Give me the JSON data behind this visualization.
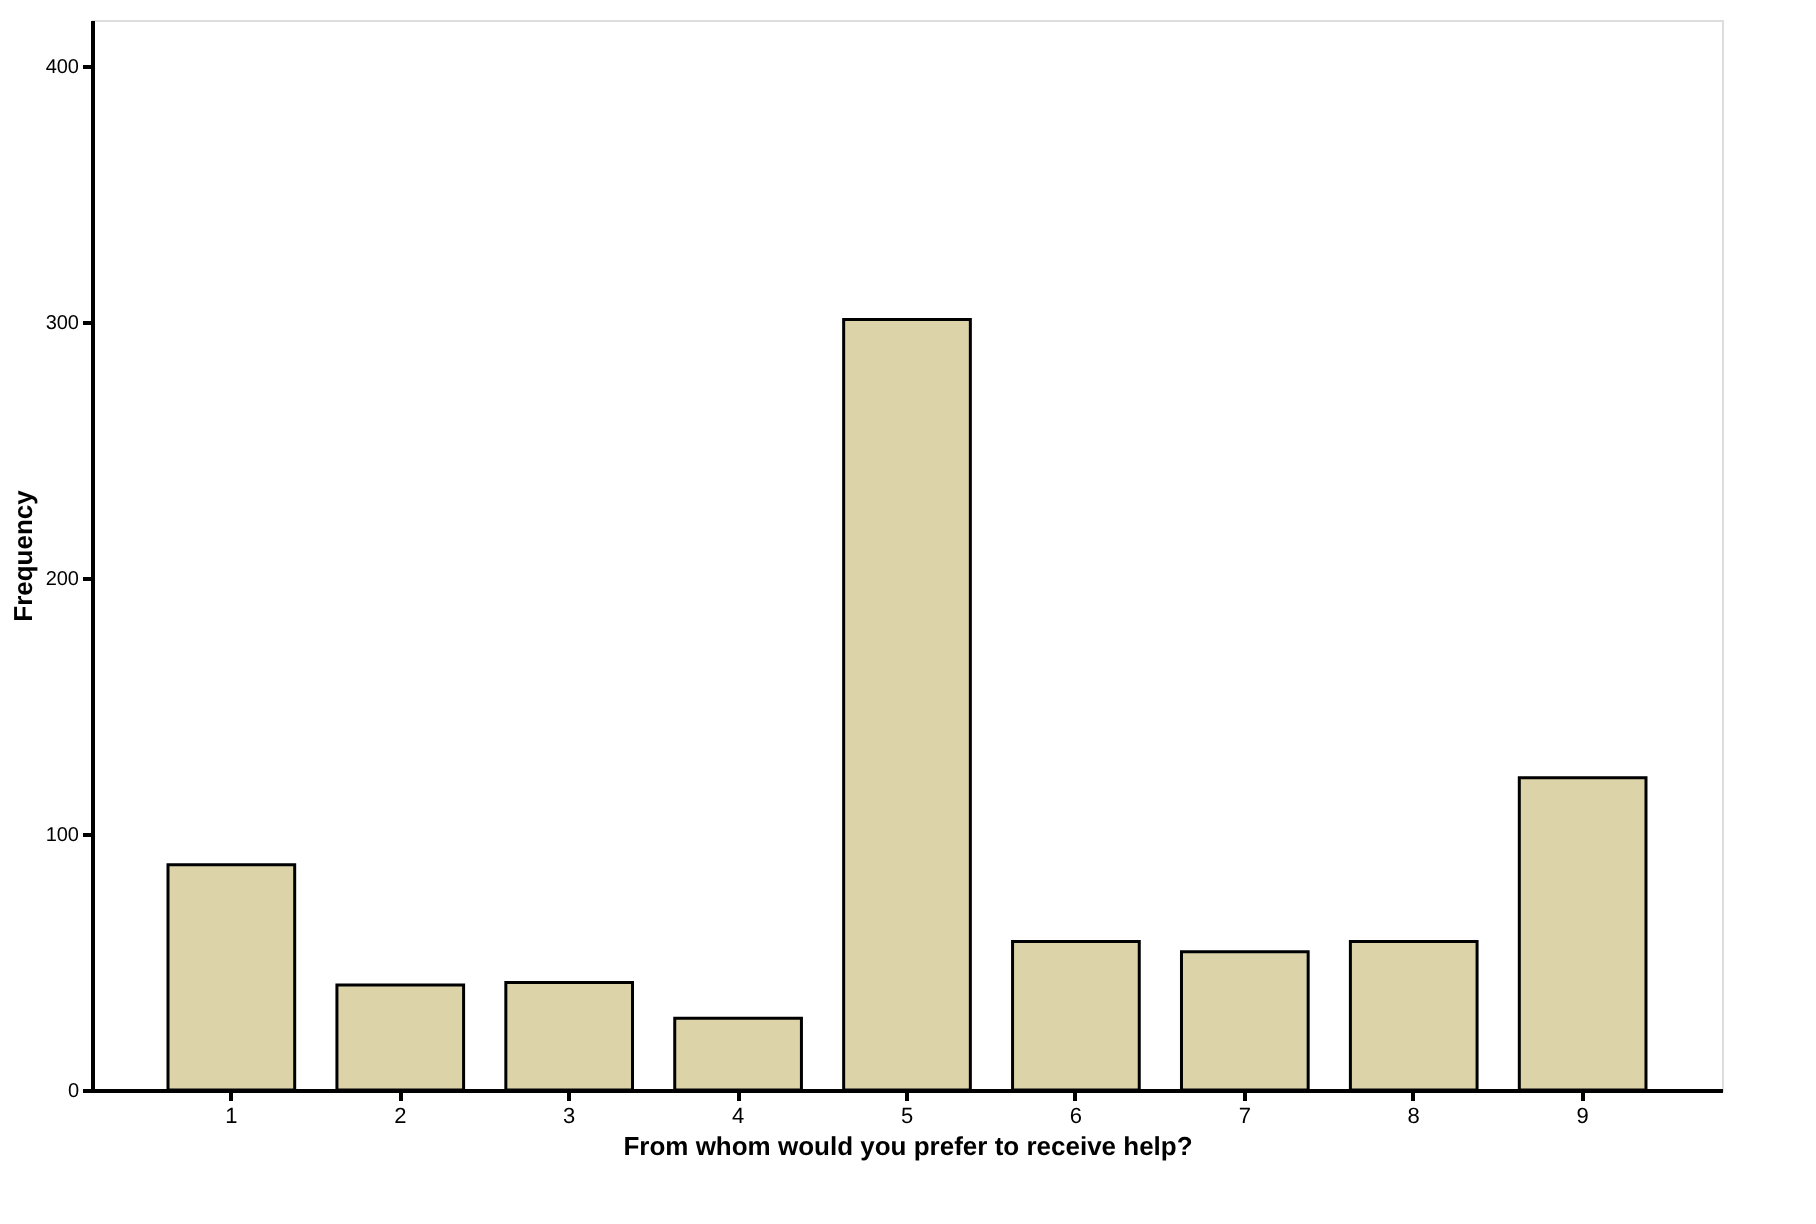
{
  "chart_data": {
    "type": "bar",
    "xlabel": "From whom would you prefer to receive help?",
    "ylabel": "Frequency",
    "categories": [
      "1",
      "2",
      "3",
      "4",
      "5",
      "6",
      "7",
      "8",
      "9"
    ],
    "values": [
      88,
      41,
      42,
      28,
      301,
      58,
      54,
      58,
      122
    ],
    "color": "#dcd4a8",
    "ylim": [
      0,
      418
    ],
    "yticks": [
      0,
      100,
      200,
      300,
      400
    ],
    "grid": false
  }
}
